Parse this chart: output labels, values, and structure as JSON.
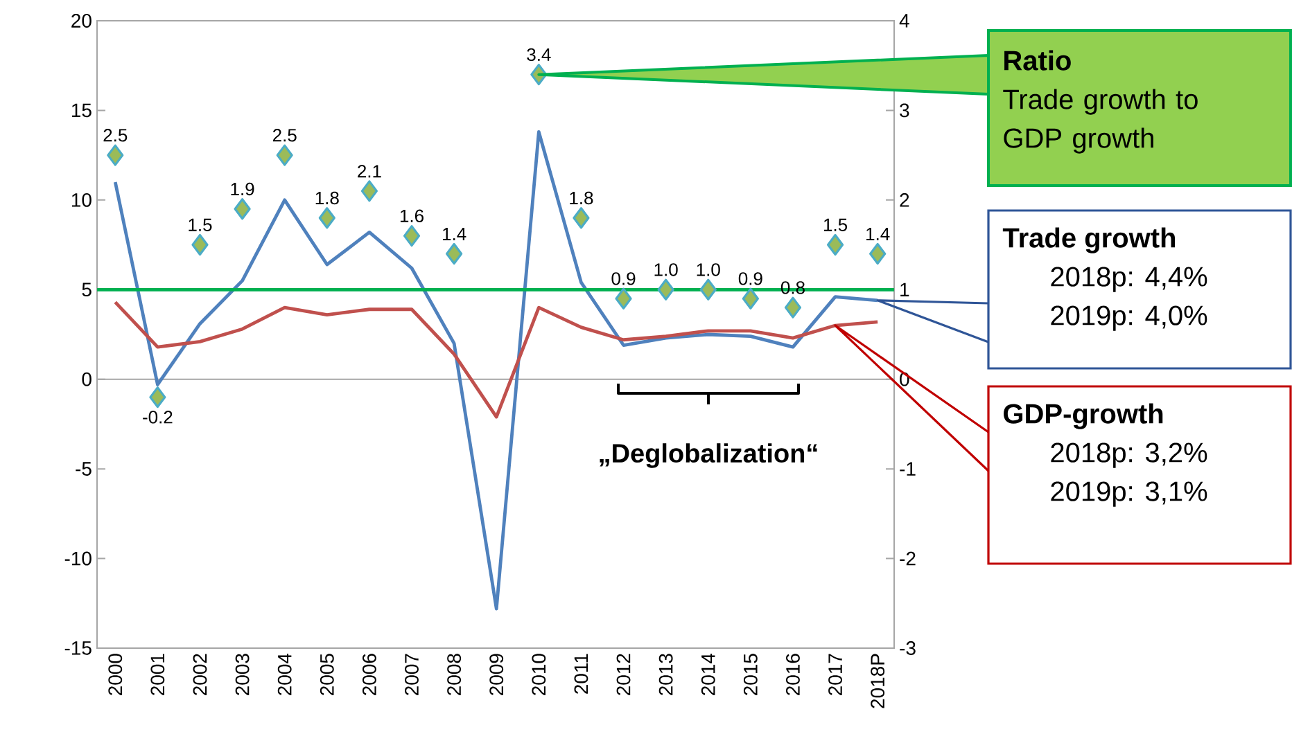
{
  "chart_data": {
    "type": "line",
    "categories": [
      "2000",
      "2001",
      "2002",
      "2003",
      "2004",
      "2005",
      "2006",
      "2007",
      "2008",
      "2009",
      "2010",
      "2011",
      "2012",
      "2013",
      "2014",
      "2015",
      "2016",
      "2017",
      "2018P"
    ],
    "series": [
      {
        "color": "#4f81bd",
        "values": [
          11.0,
          -0.3,
          3.1,
          5.5,
          10.0,
          6.4,
          8.2,
          6.2,
          2.0,
          -12.8,
          13.8,
          5.4,
          1.9,
          2.3,
          2.5,
          2.4,
          1.8,
          4.6,
          4.4
        ]
      },
      {
        "color": "#c0504d",
        "values": [
          4.3,
          1.8,
          2.1,
          2.8,
          4.0,
          3.6,
          3.9,
          3.9,
          1.4,
          -2.1,
          4.0,
          2.9,
          2.2,
          2.4,
          2.7,
          2.7,
          2.3,
          3.0,
          3.2
        ]
      },
      {
        "type": "scatter",
        "axis": "y2",
        "marker": "diamond",
        "color": "#9bbb59",
        "values": [
          2.5,
          -0.2,
          1.5,
          1.9,
          2.5,
          1.8,
          2.1,
          1.6,
          1.4,
          null,
          3.4,
          1.8,
          0.9,
          1.0,
          1.0,
          0.9,
          0.8,
          1.5,
          1.4
        ],
        "value_labels": [
          "2.5",
          "-0.2",
          "1.5",
          "1.9",
          "2.5",
          "1.8",
          "2.1",
          "1.6",
          "1.4",
          null,
          "3.4",
          "1.8",
          "0.9",
          "1.0",
          "1.0",
          "0.9",
          "0.8",
          "1.5",
          "1.4"
        ]
      }
    ],
    "ylim": [
      -15,
      20
    ],
    "yticks": [
      -15,
      -10,
      -5,
      0,
      5,
      10,
      15,
      20
    ],
    "y2lim": [
      -3,
      4
    ],
    "y2ticks": [
      -3,
      -2,
      -1,
      0,
      1,
      2,
      3,
      4
    ],
    "marker": "none",
    "line_style": "solid",
    "grid": false,
    "ref_lines": [
      {
        "axis": "y2",
        "value": 1,
        "color": "#00b050"
      }
    ],
    "annotations": [
      "Ratio",
      "Trade growth to GDP growth",
      "Trade growth",
      "2018p: 4,4%",
      "2019p: 4,0%",
      "GDP-growth",
      "2018p: 3,2%",
      "2019p: 3,1%",
      "„Deglobalization“"
    ]
  }
}
